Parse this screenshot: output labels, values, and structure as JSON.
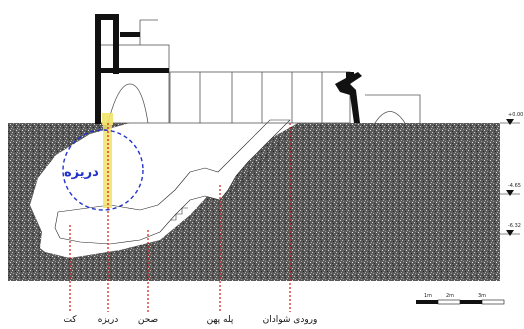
{
  "labels": {
    "kat": "کت",
    "dariche": "دریزه",
    "sahn": "صحن",
    "pele_pahn": "پله پهن",
    "vorudi": "ورودی شوادان",
    "circle_label": "دریزه"
  },
  "levels": [
    "+0.00",
    "-4.65",
    "-6.32"
  ],
  "scale": [
    "1m",
    "2m",
    "3m"
  ],
  "colors": {
    "soil": "#5e5e5e",
    "dashed_red": "#d11a1a",
    "circle_blue": "#2233cc",
    "shaft_yellow": "#f2e36a"
  }
}
